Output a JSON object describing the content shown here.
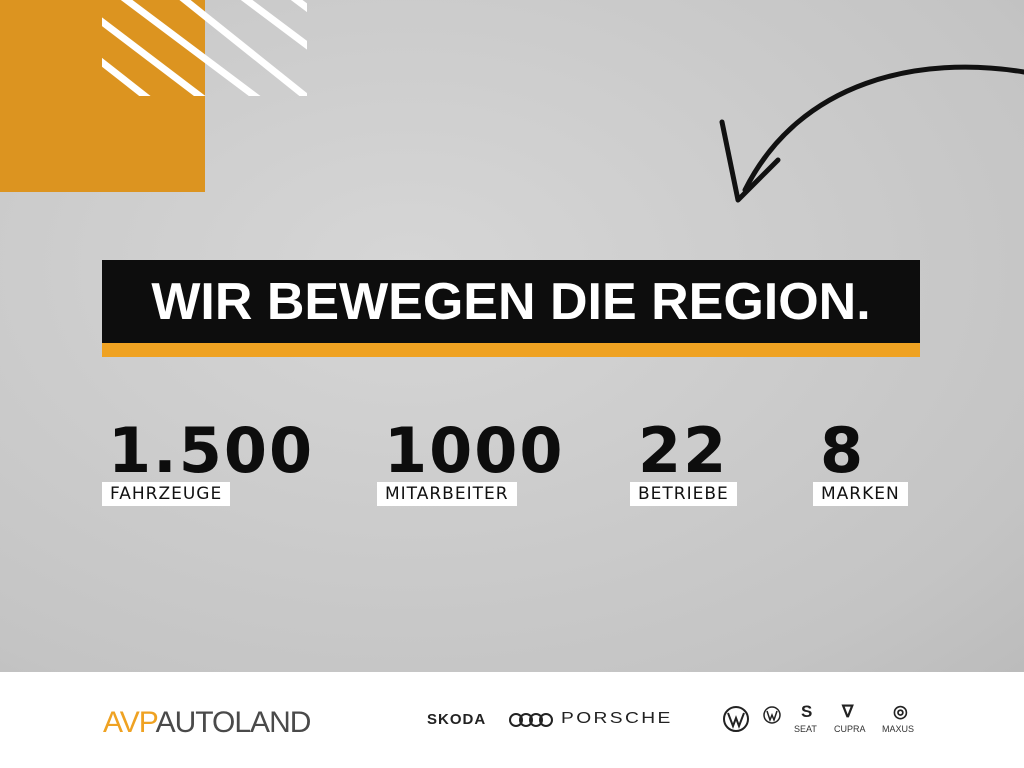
{
  "headline": "WIR BEWEGEN DIE REGION.",
  "stats": [
    {
      "value": "1.500",
      "label": "FAHRZEUGE"
    },
    {
      "value": "1000",
      "label": "MITARBEITER"
    },
    {
      "value": "22",
      "label": "BETRIEBE"
    },
    {
      "value": "8",
      "label": "MARKEN"
    }
  ],
  "footer": {
    "logo_part1": "AVP",
    "logo_part2": "AUTOLAND",
    "brands": [
      "SKODA",
      "Audi",
      "PORSCHE",
      "Volkswagen",
      "Volkswagen Nutzfahrzeuge",
      "SEAT",
      "CUPRA",
      "MAXUS"
    ],
    "brand_labels": {
      "skoda": "SKODA",
      "porsche": "PORSCHE",
      "seat": "SEAT",
      "cupra": "CUPRA",
      "maxus": "MAXUS"
    }
  },
  "colors": {
    "orange": "#dc9420",
    "accent": "#efa222",
    "black": "#0d0d0d",
    "concrete": "#cfcfcf"
  }
}
